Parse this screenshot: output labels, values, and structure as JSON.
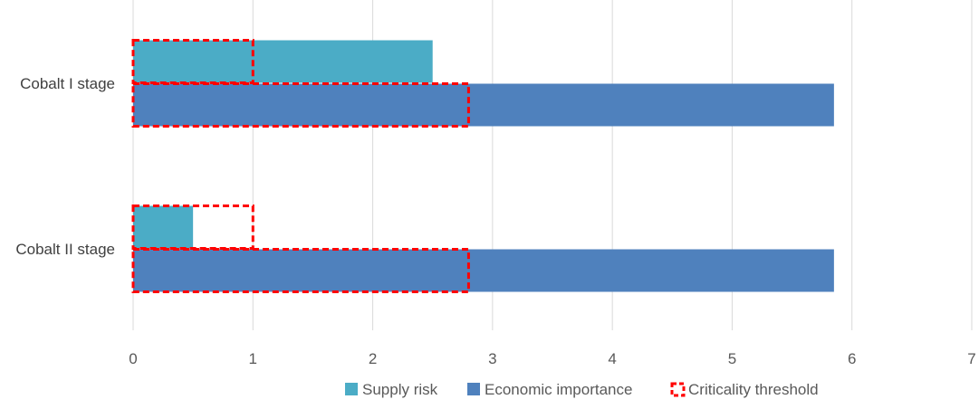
{
  "chart_data": {
    "type": "bar",
    "orientation": "horizontal",
    "categories": [
      "Cobalt I stage",
      "Cobalt II stage"
    ],
    "series": [
      {
        "name": "Supply risk",
        "values": [
          2.5,
          0.5
        ],
        "threshold": 1.0,
        "color": "#4bacc6"
      },
      {
        "name": "Economic importance",
        "values": [
          5.85,
          5.85
        ],
        "threshold": 2.8,
        "color": "#4f81bd"
      }
    ],
    "threshold_name": "Criticality threshold",
    "threshold_color": "#ff0000",
    "xlim": [
      0,
      7
    ],
    "xticks": [
      0,
      1,
      2,
      3,
      4,
      5,
      6,
      7
    ],
    "grid": "vertical",
    "legend": "bottom",
    "xlabel": "",
    "ylabel": "",
    "title": ""
  }
}
